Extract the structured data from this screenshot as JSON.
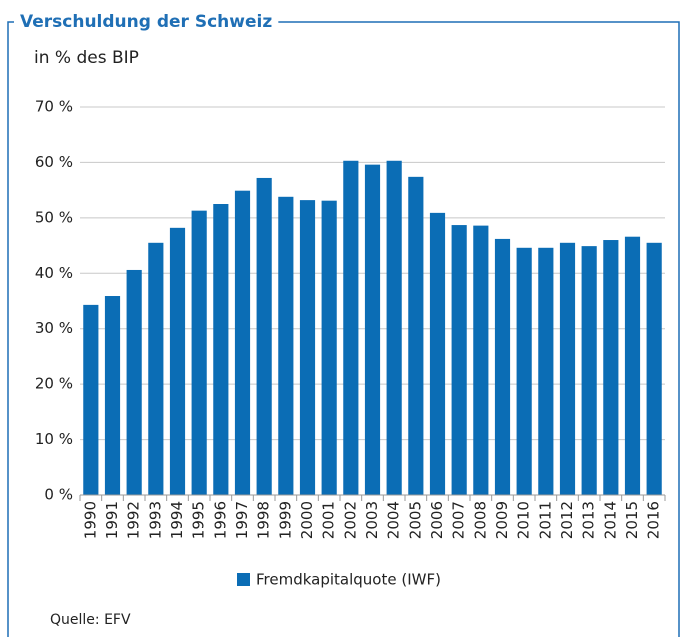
{
  "chart_data": {
    "type": "bar",
    "title": "Verschuldung der Schweiz",
    "subtitle": "in % des BIP",
    "categories": [
      "1990",
      "1991",
      "1992",
      "1993",
      "1994",
      "1995",
      "1996",
      "1997",
      "1998",
      "1999",
      "2000",
      "2001",
      "2002",
      "2003",
      "2004",
      "2005",
      "2006",
      "2007",
      "2008",
      "2009",
      "2010",
      "2011",
      "2012",
      "2013",
      "2014",
      "2015",
      "2016"
    ],
    "series": [
      {
        "name": "Fremdkapitalquote (IWF)",
        "color": "#0b6db5",
        "values": [
          34.3,
          35.9,
          40.6,
          45.5,
          48.2,
          51.3,
          52.5,
          54.9,
          57.2,
          53.8,
          53.2,
          53.1,
          60.3,
          59.6,
          60.3,
          57.4,
          50.9,
          48.7,
          48.6,
          46.2,
          44.6,
          44.6,
          45.5,
          44.9,
          46.0,
          46.6,
          45.5
        ]
      }
    ],
    "ylim": [
      0,
      70
    ],
    "yticks": [
      {
        "value": 0,
        "label": "0 %"
      },
      {
        "value": 10,
        "label": "10 %"
      },
      {
        "value": 20,
        "label": "20 %"
      },
      {
        "value": 30,
        "label": "30 %"
      },
      {
        "value": 40,
        "label": "40 %"
      },
      {
        "value": 50,
        "label": "50 %"
      },
      {
        "value": 60,
        "label": "60 %"
      },
      {
        "value": 70,
        "label": "70 %"
      }
    ],
    "grid": true,
    "legend": "bottom",
    "source": "Quelle: EFV"
  }
}
